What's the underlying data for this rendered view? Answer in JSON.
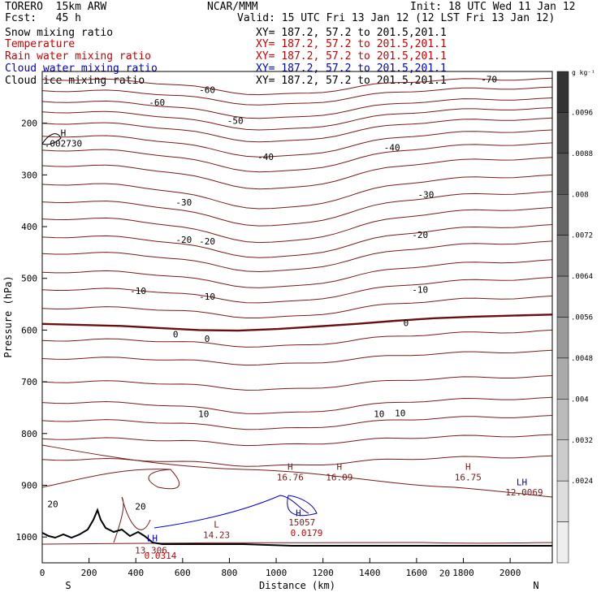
{
  "header": {
    "model": "TORERO  15km ARW",
    "forecast": "Fcst:   45 h",
    "center": "NCAR/MMM",
    "init": "Init: 18 UTC Wed 11 Jan 12",
    "valid": "Valid: 15 UTC Fri 13 Jan 12 (12 LST Fri 13 Jan 12)",
    "fields": [
      {
        "name": "Snow mixing ratio",
        "coords": "XY= 187.2, 57.2 to 201.5,201.1",
        "color": "#000000"
      },
      {
        "name": "Temperature",
        "coords": "XY= 187.2, 57.2 to 201.5,201.1",
        "color": "#cc0000"
      },
      {
        "name": "Rain water mixing ratio",
        "coords": "XY= 187.2, 57.2 to 201.5,201.1",
        "color": "#cc0000"
      },
      {
        "name": "Cloud water mixing ratio",
        "coords": "XY= 187.2, 57.2 to 201.5,201.1",
        "color": "#0000cc"
      },
      {
        "name": "Cloud ice mixing ratio",
        "coords": "XY= 187.2, 57.2 to 201.5,201.1",
        "color": "#000000"
      }
    ]
  },
  "chart_data": {
    "type": "contour",
    "xlabel": "Distance (km)",
    "ylabel": "Pressure (hPa)",
    "xlim": [
      0,
      2180
    ],
    "ylim": [
      1050,
      100
    ],
    "x_ticks": [
      0,
      200,
      400,
      600,
      800,
      1000,
      1200,
      1400,
      1600,
      1800,
      2000
    ],
    "y_ticks": [
      200,
      300,
      400,
      500,
      600,
      700,
      800,
      900,
      1000
    ],
    "direction_labels": {
      "left": "S",
      "right": "N"
    },
    "colorbar": {
      "unit": "g kg⁻¹",
      "ticks": [
        ".0096",
        ".0088",
        ".008",
        ".0072",
        ".0064",
        ".0056",
        ".0048",
        ".004",
        ".0032",
        ".0024"
      ],
      "colors": [
        "#333333",
        "#444444",
        "#555555",
        "#666666",
        "#777777",
        "#888888",
        "#999999",
        "#aaaaaa",
        "#bbbbbb",
        "#cccccc",
        "#dddddd",
        "#eeeeee"
      ]
    },
    "isotherm_labels": [
      {
        "text": "-70",
        "x": 1910,
        "p": 115
      },
      {
        "text": "-60",
        "x": 705,
        "p": 135
      },
      {
        "text": "-60",
        "x": 490,
        "p": 160
      },
      {
        "text": "-50",
        "x": 825,
        "p": 195
      },
      {
        "text": "-40",
        "x": 955,
        "p": 265
      },
      {
        "text": "-40",
        "x": 1495,
        "p": 247
      },
      {
        "text": "-30",
        "x": 605,
        "p": 353
      },
      {
        "text": "-30",
        "x": 1640,
        "p": 338
      },
      {
        "text": "-20",
        "x": 605,
        "p": 425
      },
      {
        "text": "-20",
        "x": 705,
        "p": 428
      },
      {
        "text": "-20",
        "x": 1615,
        "p": 416
      },
      {
        "text": "-10",
        "x": 410,
        "p": 524
      },
      {
        "text": "-10",
        "x": 705,
        "p": 535
      },
      {
        "text": "-10",
        "x": 1615,
        "p": 522
      },
      {
        "text": "0",
        "x": 570,
        "p": 608
      },
      {
        "text": "0",
        "x": 705,
        "p": 617
      },
      {
        "text": "0",
        "x": 1555,
        "p": 586
      },
      {
        "text": "10",
        "x": 690,
        "p": 762
      },
      {
        "text": "10",
        "x": 1440,
        "p": 762
      },
      {
        "text": "10",
        "x": 1530,
        "p": 760
      },
      {
        "text": "20",
        "x": 45,
        "p": 936
      },
      {
        "text": "20",
        "x": 420,
        "p": 941
      },
      {
        "text": "20",
        "x": 1720,
        "p": 1070
      }
    ],
    "extrema": [
      {
        "type": "H",
        "value": "16.76",
        "x": 1060,
        "p": 870,
        "color": "#7a1a1a"
      },
      {
        "type": "H",
        "value": "16.09",
        "x": 1270,
        "p": 870,
        "color": "#7a1a1a"
      },
      {
        "type": "H",
        "value": "16.75",
        "x": 1820,
        "p": 870,
        "color": "#7a1a1a"
      },
      {
        "type": "L",
        "value": "14.23",
        "x": 745,
        "p": 982,
        "color": "#7a1a1a"
      },
      {
        "type": "H",
        "value": ".002730",
        "x": 90,
        "p": 225,
        "color": "#000000"
      }
    ],
    "overlaps": [
      {
        "text": "LH",
        "x": 470,
        "p": 1008,
        "color": "#0000cc"
      },
      {
        "text": "13.306",
        "x": 465,
        "p": 1032,
        "color": "#7a1a1a"
      },
      {
        "text": "0.0314",
        "x": 505,
        "p": 1042,
        "color": "#cc0000"
      },
      {
        "text": "H",
        "x": 1095,
        "p": 960,
        "color": "#0000cc"
      },
      {
        "text": "15057",
        "x": 1110,
        "p": 978,
        "color": "#7a1a1a"
      },
      {
        "text": "0.0179",
        "x": 1130,
        "p": 998,
        "color": "#cc0000"
      },
      {
        "text": "LH",
        "x": 2050,
        "p": 900,
        "color": "#0000cc"
      },
      {
        "text": "12.0069",
        "x": 2060,
        "p": 920,
        "color": "#7a1a1a"
      }
    ],
    "freezing_level_hPa": [
      588,
      590,
      592,
      596,
      600,
      601,
      598,
      593,
      588,
      582,
      577,
      574,
      572,
      570
    ]
  }
}
